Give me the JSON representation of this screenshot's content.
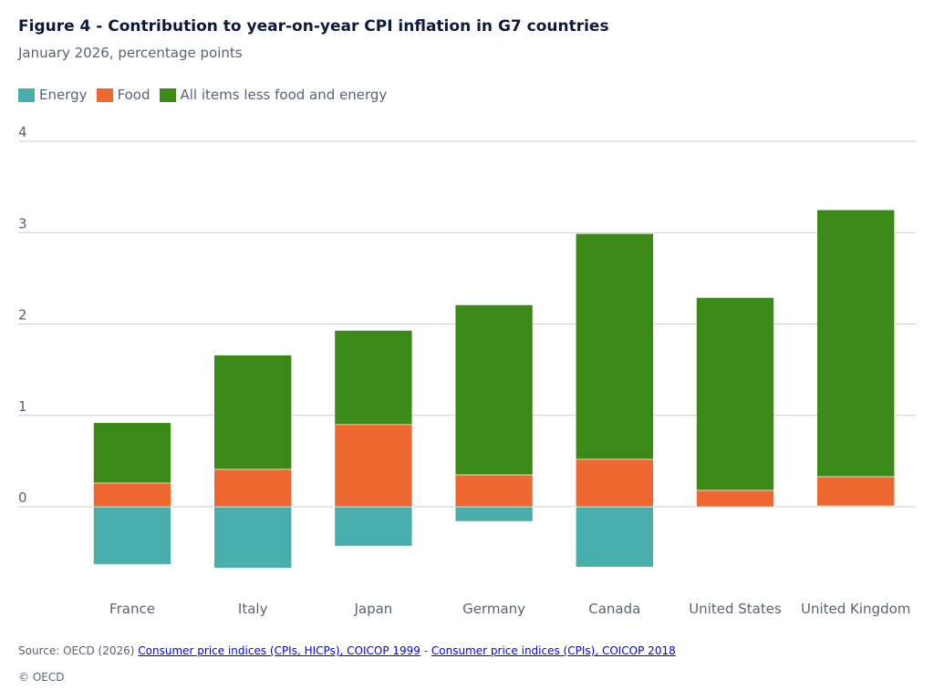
{
  "chart_data": {
    "type": "bar",
    "stacked": true,
    "title": "Figure 4 - Contribution to year-on-year CPI inflation in G7 countries",
    "subtitle": "January 2026, percentage points",
    "categories": [
      "France",
      "Italy",
      "Japan",
      "Germany",
      "Canada",
      "United States",
      "United Kingdom"
    ],
    "series": [
      {
        "name": "Energy",
        "color": "#47aeab",
        "values": [
          -0.63,
          -0.67,
          -0.43,
          -0.16,
          -0.66,
          -0.01,
          0.01
        ]
      },
      {
        "name": "Food",
        "color": "#ee6730",
        "values": [
          0.26,
          0.41,
          0.9,
          0.35,
          0.52,
          0.18,
          0.32
        ]
      },
      {
        "name": "All items less food and energy",
        "color": "#3b8a17",
        "values": [
          0.66,
          1.25,
          1.03,
          1.86,
          2.47,
          2.11,
          2.92
        ]
      }
    ],
    "yticks": [
      "0",
      "1",
      "2",
      "3",
      "4"
    ],
    "ylim": [
      -0.9,
      4
    ],
    "xlabel": "",
    "ylabel": ""
  },
  "legend": {
    "energy": "Energy",
    "food": "Food",
    "core": "All items less food and energy"
  },
  "footer": {
    "source_prefix": "Source: OECD (2026)",
    "link1": "Consumer price indices (CPIs, HICPs), COICOP 1999",
    "separator": "-",
    "link2": "Consumer price indices (CPIs), COICOP 2018",
    "copyright": "© OECD"
  }
}
